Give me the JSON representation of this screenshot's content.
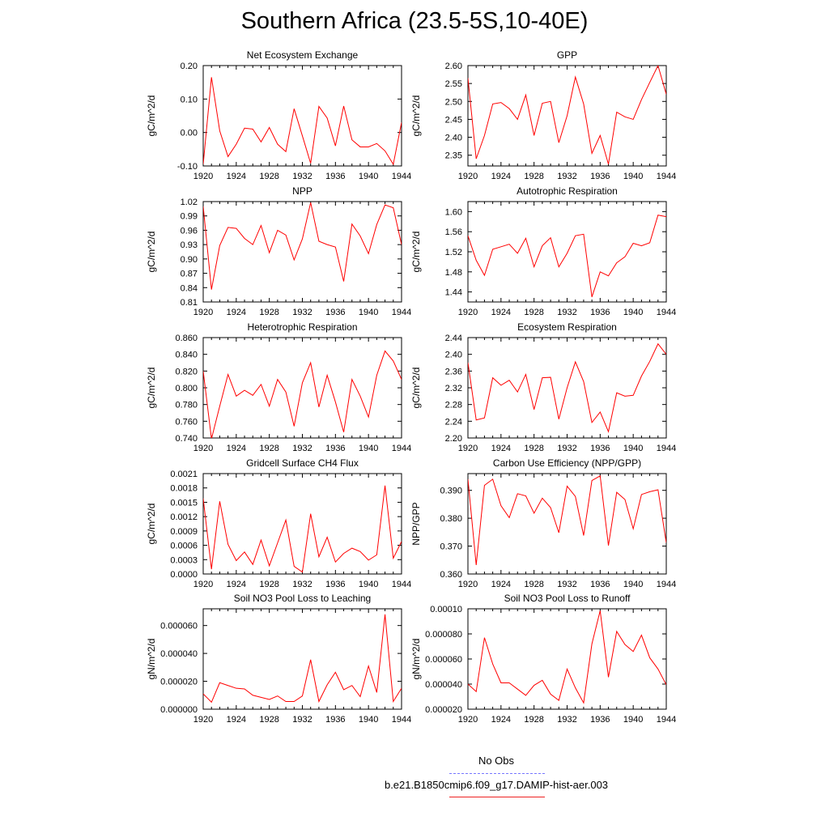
{
  "title": "Southern Africa (23.5-5S,10-40E)",
  "legend": {
    "items": [
      {
        "label": "No Obs",
        "color": "#7777ff",
        "style": "dashed"
      },
      {
        "label": "b.e21.B1850cmip6.f09_g17.DAMIP-hist-aer.003",
        "color": "#ee2222",
        "style": "solid"
      }
    ]
  },
  "colors": {
    "series": "#ff0000",
    "axis": "#000000"
  },
  "chart_data": [
    {
      "type": "line",
      "title": "Net Ecosystem Exchange",
      "ylabel": "gC/m^2/d",
      "xlabel": "",
      "xlim": [
        1920,
        1944
      ],
      "ylim": [
        -0.1,
        0.2
      ],
      "xticks": [
        1920,
        1924,
        1928,
        1932,
        1936,
        1940,
        1944
      ],
      "xtick_labels": [
        "1920",
        "1924",
        "1928",
        "1932",
        "1936",
        "1940",
        "1944"
      ],
      "yticks": [
        -0.1,
        0.0,
        0.1,
        0.2
      ],
      "ytick_labels": [
        "-0.10",
        "0.00",
        "0.10",
        "0.20"
      ],
      "series": [
        {
          "x": [
            1920,
            1921,
            1922,
            1923,
            1924,
            1925,
            1926,
            1927,
            1928,
            1929,
            1930,
            1931,
            1932,
            1933,
            1934,
            1935,
            1936,
            1937,
            1938,
            1939,
            1940,
            1941,
            1942,
            1943,
            1944
          ],
          "y": [
            -0.095,
            0.165,
            0.005,
            -0.072,
            -0.035,
            0.013,
            0.01,
            -0.028,
            0.015,
            -0.035,
            -0.057,
            0.071,
            -0.01,
            -0.092,
            0.078,
            0.043,
            -0.04,
            0.079,
            -0.022,
            -0.043,
            -0.043,
            -0.033,
            -0.055,
            -0.095,
            0.03
          ]
        }
      ]
    },
    {
      "type": "line",
      "title": "GPP",
      "ylabel": "gC/m^2/d",
      "xlabel": "",
      "xlim": [
        1920,
        1944
      ],
      "ylim": [
        2.32,
        2.6
      ],
      "xticks": [
        1920,
        1924,
        1928,
        1932,
        1936,
        1940,
        1944
      ],
      "xtick_labels": [
        "1920",
        "1924",
        "1928",
        "1932",
        "1936",
        "1940",
        "1944"
      ],
      "yticks": [
        2.35,
        2.4,
        2.45,
        2.5,
        2.55,
        2.6
      ],
      "ytick_labels": [
        "2.35",
        "2.40",
        "2.45",
        "2.50",
        "2.55",
        "2.60"
      ],
      "series": [
        {
          "x": [
            1920,
            1921,
            1922,
            1923,
            1924,
            1925,
            1926,
            1927,
            1928,
            1929,
            1930,
            1931,
            1932,
            1933,
            1934,
            1935,
            1936,
            1937,
            1938,
            1939,
            1940,
            1941,
            1942,
            1943,
            1944
          ],
          "y": [
            2.565,
            2.34,
            2.405,
            2.493,
            2.497,
            2.48,
            2.45,
            2.518,
            2.405,
            2.495,
            2.5,
            2.385,
            2.46,
            2.568,
            2.493,
            2.355,
            2.405,
            2.325,
            2.47,
            2.457,
            2.45,
            2.505,
            2.553,
            2.6,
            2.52
          ]
        }
      ]
    },
    {
      "type": "line",
      "title": "NPP",
      "ylabel": "gC/m^2/d",
      "xlabel": "",
      "xlim": [
        1920,
        1944
      ],
      "ylim": [
        0.81,
        1.02
      ],
      "xticks": [
        1920,
        1924,
        1928,
        1932,
        1936,
        1940,
        1944
      ],
      "xtick_labels": [
        "1920",
        "1924",
        "1928",
        "1932",
        "1936",
        "1940",
        "1944"
      ],
      "yticks": [
        0.81,
        0.84,
        0.87,
        0.9,
        0.93,
        0.96,
        0.99,
        1.02
      ],
      "ytick_labels": [
        "0.81",
        "0.84",
        "0.87",
        "0.90",
        "0.93",
        "0.96",
        "0.99",
        "1.02"
      ],
      "series": [
        {
          "x": [
            1920,
            1921,
            1922,
            1923,
            1924,
            1925,
            1926,
            1927,
            1928,
            1929,
            1930,
            1931,
            1932,
            1933,
            1934,
            1935,
            1936,
            1937,
            1938,
            1939,
            1940,
            1941,
            1942,
            1943,
            1944
          ],
          "y": [
            1.01,
            0.836,
            0.928,
            0.966,
            0.964,
            0.943,
            0.93,
            0.97,
            0.913,
            0.96,
            0.95,
            0.898,
            0.942,
            1.018,
            0.937,
            0.93,
            0.925,
            0.853,
            0.973,
            0.948,
            0.911,
            0.972,
            1.013,
            1.007,
            0.93
          ]
        }
      ]
    },
    {
      "type": "line",
      "title": "Autotrophic Respiration",
      "ylabel": "gC/m^2/d",
      "xlabel": "",
      "xlim": [
        1920,
        1944
      ],
      "ylim": [
        1.42,
        1.62
      ],
      "xticks": [
        1920,
        1924,
        1928,
        1932,
        1936,
        1940,
        1944
      ],
      "xtick_labels": [
        "1920",
        "1924",
        "1928",
        "1932",
        "1936",
        "1940",
        "1944"
      ],
      "yticks": [
        1.44,
        1.48,
        1.52,
        1.56,
        1.6
      ],
      "ytick_labels": [
        "1.44",
        "1.48",
        "1.52",
        "1.56",
        "1.60"
      ],
      "series": [
        {
          "x": [
            1920,
            1921,
            1922,
            1923,
            1924,
            1925,
            1926,
            1927,
            1928,
            1929,
            1930,
            1931,
            1932,
            1933,
            1934,
            1935,
            1936,
            1937,
            1938,
            1939,
            1940,
            1941,
            1942,
            1943,
            1944
          ],
          "y": [
            1.552,
            1.503,
            1.473,
            1.525,
            1.53,
            1.535,
            1.517,
            1.547,
            1.49,
            1.532,
            1.548,
            1.49,
            1.517,
            1.552,
            1.555,
            1.43,
            1.48,
            1.472,
            1.498,
            1.51,
            1.537,
            1.532,
            1.538,
            1.593,
            1.59
          ]
        }
      ]
    },
    {
      "type": "line",
      "title": "Heterotrophic Respiration",
      "ylabel": "gC/m^2/d",
      "xlabel": "",
      "xlim": [
        1920,
        1944
      ],
      "ylim": [
        0.74,
        0.86
      ],
      "xticks": [
        1920,
        1924,
        1928,
        1932,
        1936,
        1940,
        1944
      ],
      "xtick_labels": [
        "1920",
        "1924",
        "1928",
        "1932",
        "1936",
        "1940",
        "1944"
      ],
      "yticks": [
        0.74,
        0.76,
        0.78,
        0.8,
        0.82,
        0.84,
        0.86
      ],
      "ytick_labels": [
        "0.740",
        "0.760",
        "0.780",
        "0.800",
        "0.820",
        "0.840",
        "0.860"
      ],
      "series": [
        {
          "x": [
            1920,
            1921,
            1922,
            1923,
            1924,
            1925,
            1926,
            1927,
            1928,
            1929,
            1930,
            1931,
            1932,
            1933,
            1934,
            1935,
            1936,
            1937,
            1938,
            1939,
            1940,
            1941,
            1942,
            1943,
            1944
          ],
          "y": [
            0.82,
            0.739,
            0.778,
            0.816,
            0.79,
            0.797,
            0.791,
            0.804,
            0.778,
            0.81,
            0.795,
            0.754,
            0.806,
            0.83,
            0.777,
            0.815,
            0.783,
            0.747,
            0.81,
            0.79,
            0.765,
            0.815,
            0.844,
            0.832,
            0.81
          ]
        }
      ]
    },
    {
      "type": "line",
      "title": "Ecosystem Respiration",
      "ylabel": "gC/m^2/d",
      "xlabel": "",
      "xlim": [
        1920,
        1944
      ],
      "ylim": [
        2.2,
        2.44
      ],
      "xticks": [
        1920,
        1924,
        1928,
        1932,
        1936,
        1940,
        1944
      ],
      "xtick_labels": [
        "1920",
        "1924",
        "1928",
        "1932",
        "1936",
        "1940",
        "1944"
      ],
      "yticks": [
        2.2,
        2.24,
        2.28,
        2.32,
        2.36,
        2.4,
        2.44
      ],
      "ytick_labels": [
        "2.20",
        "2.24",
        "2.28",
        "2.32",
        "2.36",
        "2.40",
        "2.44"
      ],
      "series": [
        {
          "x": [
            1920,
            1921,
            1922,
            1923,
            1924,
            1925,
            1926,
            1927,
            1928,
            1929,
            1930,
            1931,
            1932,
            1933,
            1934,
            1935,
            1936,
            1937,
            1938,
            1939,
            1940,
            1941,
            1942,
            1943,
            1944
          ],
          "y": [
            2.38,
            2.243,
            2.248,
            2.344,
            2.326,
            2.338,
            2.31,
            2.352,
            2.268,
            2.344,
            2.345,
            2.245,
            2.32,
            2.382,
            2.335,
            2.237,
            2.262,
            2.215,
            2.308,
            2.3,
            2.302,
            2.348,
            2.383,
            2.425,
            2.4
          ]
        }
      ]
    },
    {
      "type": "line",
      "title": "Gridcell Surface CH4 Flux",
      "ylabel": "gC/m^2/d",
      "xlabel": "",
      "xlim": [
        1920,
        1944
      ],
      "ylim": [
        0.0,
        0.0021
      ],
      "xticks": [
        1920,
        1924,
        1928,
        1932,
        1936,
        1940,
        1944
      ],
      "xtick_labels": [
        "1920",
        "1924",
        "1928",
        "1932",
        "1936",
        "1940",
        "1944"
      ],
      "yticks": [
        0.0,
        0.0003,
        0.0006,
        0.0009,
        0.0012,
        0.0015,
        0.0018,
        0.0021
      ],
      "ytick_labels": [
        "0.0000",
        "0.0003",
        "0.0006",
        "0.0009",
        "0.0012",
        "0.0015",
        "0.0018",
        "0.0021"
      ],
      "series": [
        {
          "x": [
            1920,
            1921,
            1922,
            1923,
            1924,
            1925,
            1926,
            1927,
            1928,
            1929,
            1930,
            1931,
            1932,
            1933,
            1934,
            1935,
            1936,
            1937,
            1938,
            1939,
            1940,
            1941,
            1942,
            1943,
            1944
          ],
          "y": [
            0.00158,
            0.0001,
            0.00152,
            0.00062,
            0.00028,
            0.00046,
            0.0002,
            0.00071,
            0.00017,
            0.00065,
            0.00113,
            0.00016,
            4e-05,
            0.00126,
            0.00036,
            0.00077,
            0.00025,
            0.00043,
            0.00054,
            0.00047,
            0.00029,
            0.0004,
            0.00185,
            0.00033,
            0.00068
          ]
        }
      ]
    },
    {
      "type": "line",
      "title": "Carbon Use Efficiency (NPP/GPP)",
      "ylabel": "NPP/GPP",
      "xlabel": "",
      "xlim": [
        1920,
        1944
      ],
      "ylim": [
        0.36,
        0.396
      ],
      "xticks": [
        1920,
        1924,
        1928,
        1932,
        1936,
        1940,
        1944
      ],
      "xtick_labels": [
        "1920",
        "1924",
        "1928",
        "1932",
        "1936",
        "1940",
        "1944"
      ],
      "yticks": [
        0.36,
        0.37,
        0.38,
        0.39
      ],
      "ytick_labels": [
        "0.360",
        "0.370",
        "0.380",
        "0.390"
      ],
      "series": [
        {
          "x": [
            1920,
            1921,
            1922,
            1923,
            1924,
            1925,
            1926,
            1927,
            1928,
            1929,
            1930,
            1931,
            1932,
            1933,
            1934,
            1935,
            1936,
            1937,
            1938,
            1939,
            1940,
            1941,
            1942,
            1943,
            1944
          ],
          "y": [
            0.394,
            0.3632,
            0.3918,
            0.394,
            0.3845,
            0.3802,
            0.3888,
            0.388,
            0.3818,
            0.3872,
            0.3838,
            0.3748,
            0.3915,
            0.3878,
            0.3738,
            0.3935,
            0.3952,
            0.3702,
            0.3893,
            0.3867,
            0.3762,
            0.3885,
            0.3895,
            0.3902,
            0.3712
          ]
        }
      ]
    },
    {
      "type": "line",
      "title": "Soil NO3 Pool Loss to Leaching",
      "ylabel": "gN/m^2/d",
      "xlabel": "",
      "xlim": [
        1920,
        1944
      ],
      "ylim": [
        0.0,
        7.2e-05
      ],
      "xticks": [
        1920,
        1924,
        1928,
        1932,
        1936,
        1940,
        1944
      ],
      "xtick_labels": [
        "1920",
        "1924",
        "1928",
        "1932",
        "1936",
        "1940",
        "1944"
      ],
      "yticks": [
        0.0,
        2e-05,
        4e-05,
        6e-05
      ],
      "ytick_labels": [
        "0.000000",
        "0.000020",
        "0.000040",
        "0.000060"
      ],
      "series": [
        {
          "x": [
            1920,
            1921,
            1922,
            1923,
            1924,
            1925,
            1926,
            1927,
            1928,
            1929,
            1930,
            1931,
            1932,
            1933,
            1934,
            1935,
            1936,
            1937,
            1938,
            1939,
            1940,
            1941,
            1942,
            1943,
            1944
          ],
          "y": [
            1.1e-05,
            5e-06,
            1.9e-05,
            1.7e-05,
            1.5e-05,
            1.45e-05,
            1e-05,
            8.5e-06,
            7e-06,
            9.5e-06,
            5.5e-06,
            5.5e-06,
            9.5e-06,
            3.55e-05,
            5.5e-06,
            1.75e-05,
            2.65e-05,
            1.4e-05,
            1.7e-05,
            9e-06,
            3.1e-05,
            1.2e-05,
            6.8e-05,
            5.5e-06,
            1.5e-05
          ]
        }
      ]
    },
    {
      "type": "line",
      "title": "Soil NO3 Pool Loss to Runoff",
      "ylabel": "gN/m^2/d",
      "xlabel": "",
      "xlim": [
        1920,
        1944
      ],
      "ylim": [
        2e-05,
        0.0001
      ],
      "xticks": [
        1920,
        1924,
        1928,
        1932,
        1936,
        1940,
        1944
      ],
      "xtick_labels": [
        "1920",
        "1924",
        "1928",
        "1932",
        "1936",
        "1940",
        "1944"
      ],
      "yticks": [
        2e-05,
        4e-05,
        6e-05,
        8e-05,
        0.0001
      ],
      "ytick_labels": [
        "0.000020",
        "0.000040",
        "0.000060",
        "0.000080",
        "0.00010"
      ],
      "series": [
        {
          "x": [
            1920,
            1921,
            1922,
            1923,
            1924,
            1925,
            1926,
            1927,
            1928,
            1929,
            1930,
            1931,
            1932,
            1933,
            1934,
            1935,
            1936,
            1937,
            1938,
            1939,
            1940,
            1941,
            1942,
            1943,
            1944
          ],
          "y": [
            4e-05,
            3.4e-05,
            7.7e-05,
            5.6e-05,
            4.1e-05,
            4.1e-05,
            3.6e-05,
            3.1e-05,
            3.9e-05,
            4.3e-05,
            3.2e-05,
            2.7e-05,
            5.2e-05,
            3.7e-05,
            2.5e-05,
            7.2e-05,
            9.85e-05,
            4.55e-05,
            8.2e-05,
            7.15e-05,
            6.6e-05,
            7.9e-05,
            6.1e-05,
            5.2e-05,
            3.95e-05
          ]
        }
      ]
    }
  ]
}
